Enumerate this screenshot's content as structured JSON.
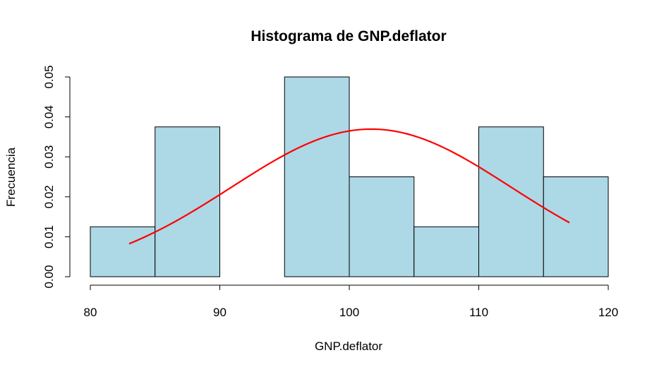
{
  "chart_data": {
    "type": "bar",
    "title": "Histograma de GNP.deflator",
    "xlabel": "GNP.deflator",
    "ylabel": "Frecuencia",
    "bins": [
      {
        "start": 80,
        "end": 85,
        "density": 0.0125
      },
      {
        "start": 85,
        "end": 90,
        "density": 0.0375
      },
      {
        "start": 90,
        "end": 95,
        "density": 0.0
      },
      {
        "start": 95,
        "end": 100,
        "density": 0.05
      },
      {
        "start": 100,
        "end": 105,
        "density": 0.025
      },
      {
        "start": 105,
        "end": 110,
        "density": 0.0125
      },
      {
        "start": 110,
        "end": 115,
        "density": 0.0375
      },
      {
        "start": 115,
        "end": 120,
        "density": 0.025
      }
    ],
    "bar_color": "#add8e6",
    "curve": {
      "color": "#ff0000",
      "type": "normal-density",
      "x_from": 83,
      "x_to": 117,
      "mean": 101.7,
      "sd": 10.8
    },
    "xlim": [
      80,
      120
    ],
    "ylim": [
      0,
      0.05
    ],
    "xticks": [
      80,
      90,
      100,
      110,
      120
    ],
    "xtick_labels": [
      "80",
      "90",
      "100",
      "110",
      "120"
    ],
    "yticks": [
      0,
      0.01,
      0.02,
      0.03,
      0.04,
      0.05
    ],
    "ytick_labels": [
      "0.00",
      "0.01",
      "0.02",
      "0.03",
      "0.04",
      "0.05"
    ],
    "grid": false
  }
}
